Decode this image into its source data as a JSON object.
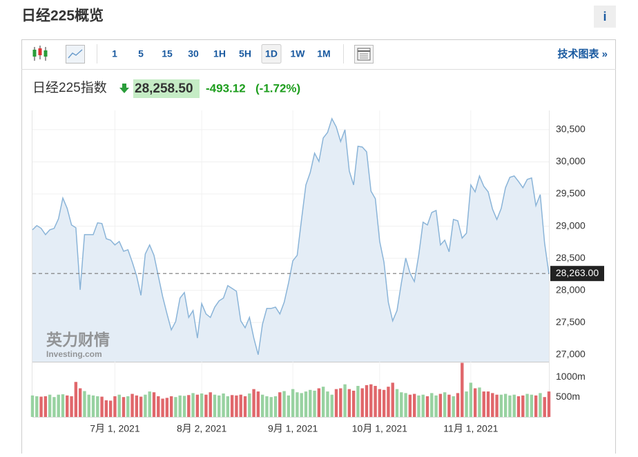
{
  "header": {
    "title": "日经225概览",
    "info": "i"
  },
  "toolbar": {
    "intervals": [
      "1",
      "5",
      "15",
      "30",
      "1H",
      "5H",
      "1D",
      "1W",
      "1M"
    ],
    "active": "1D",
    "advanced": "技术图表 »"
  },
  "quote": {
    "name": "日经225指数",
    "price": "28,258.50",
    "change": "-493.12",
    "change_percent": "(-1.72%)"
  },
  "watermark": {
    "brand": "英力财情",
    "site": "Investing.com"
  },
  "chart_data": [
    {
      "type": "line",
      "categories": [
        "2021-06-04",
        "2021-06-07",
        "2021-06-08",
        "2021-06-09",
        "2021-06-10",
        "2021-06-11",
        "2021-06-14",
        "2021-06-15",
        "2021-06-16",
        "2021-06-17",
        "2021-06-18",
        "2021-06-21",
        "2021-06-22",
        "2021-06-23",
        "2021-06-24",
        "2021-06-25",
        "2021-06-28",
        "2021-06-29",
        "2021-06-30",
        "2021-07-01",
        "2021-07-02",
        "2021-07-05",
        "2021-07-06",
        "2021-07-07",
        "2021-07-08",
        "2021-07-09",
        "2021-07-12",
        "2021-07-13",
        "2021-07-14",
        "2021-07-15",
        "2021-07-16",
        "2021-07-19",
        "2021-07-20",
        "2021-07-21",
        "2021-07-26",
        "2021-07-27",
        "2021-07-28",
        "2021-07-29",
        "2021-07-30",
        "2021-08-02",
        "2021-08-03",
        "2021-08-04",
        "2021-08-05",
        "2021-08-06",
        "2021-08-10",
        "2021-08-11",
        "2021-08-12",
        "2021-08-13",
        "2021-08-16",
        "2021-08-17",
        "2021-08-18",
        "2021-08-19",
        "2021-08-20",
        "2021-08-23",
        "2021-08-24",
        "2021-08-25",
        "2021-08-26",
        "2021-08-27",
        "2021-08-30",
        "2021-08-31",
        "2021-09-01",
        "2021-09-02",
        "2021-09-03",
        "2021-09-06",
        "2021-09-07",
        "2021-09-08",
        "2021-09-09",
        "2021-09-10",
        "2021-09-13",
        "2021-09-14",
        "2021-09-15",
        "2021-09-16",
        "2021-09-17",
        "2021-09-21",
        "2021-09-22",
        "2021-09-24",
        "2021-09-27",
        "2021-09-28",
        "2021-09-29",
        "2021-09-30",
        "2021-10-01",
        "2021-10-04",
        "2021-10-05",
        "2021-10-06",
        "2021-10-07",
        "2021-10-08",
        "2021-10-11",
        "2021-10-12",
        "2021-10-13",
        "2021-10-14",
        "2021-10-15",
        "2021-10-18",
        "2021-10-19",
        "2021-10-20",
        "2021-10-21",
        "2021-10-22",
        "2021-10-25",
        "2021-10-26",
        "2021-10-27",
        "2021-10-28",
        "2021-10-29",
        "2021-11-01",
        "2021-11-02",
        "2021-11-04",
        "2021-11-05",
        "2021-11-08",
        "2021-11-09",
        "2021-11-10",
        "2021-11-11",
        "2021-11-12",
        "2021-11-15",
        "2021-11-16",
        "2021-11-17",
        "2021-11-18",
        "2021-11-19",
        "2021-11-22",
        "2021-11-24",
        "2021-11-25",
        "2021-11-26",
        "2021-11-29"
      ],
      "series": [
        {
          "color": "#8ab4d8",
          "fill": "#e4edf6",
          "values": [
            28943,
            29008,
            28965,
            28868,
            28943,
            28965,
            29115,
            29437,
            29276,
            29018,
            28975,
            28009,
            28868,
            28868,
            28868,
            29051,
            29040,
            28804,
            28782,
            28707,
            28761,
            28610,
            28632,
            28439,
            28224,
            27923,
            28567,
            28707,
            28546,
            28224,
            27902,
            27633,
            27386,
            27515,
            27880,
            27966,
            27580,
            27687,
            27258,
            27794,
            27633,
            27580,
            27740,
            27837,
            27880,
            28074,
            28031,
            27987,
            27526,
            27419,
            27580,
            27258,
            27000,
            27472,
            27719,
            27719,
            27740,
            27633,
            27816,
            28117,
            28460,
            28546,
            29104,
            29641,
            29834,
            30135,
            30006,
            30371,
            30457,
            30672,
            30543,
            30317,
            30500,
            29856,
            29641,
            30242,
            30231,
            30156,
            29544,
            29426,
            28761,
            28439,
            27816,
            27526,
            27687,
            28117,
            28503,
            28267,
            28138,
            28546,
            29061,
            29018,
            29212,
            29244,
            28707,
            28782,
            28600,
            29104,
            29083,
            28814,
            28890,
            29641,
            29534,
            29781,
            29620,
            29534,
            29265,
            29104,
            29276,
            29598,
            29759,
            29781,
            29695,
            29598,
            29727,
            29749,
            29319,
            29491,
            28739,
            28256
          ]
        }
      ],
      "ylim": [
        26890,
        30800
      ],
      "yticks": [
        {
          "value": 27000,
          "label": "27,000"
        },
        {
          "value": 27500,
          "label": "27,500"
        },
        {
          "value": 28000,
          "label": "28,000"
        },
        {
          "value": 28500,
          "label": "28,500"
        },
        {
          "value": 29000,
          "label": "29,000"
        },
        {
          "value": 29500,
          "label": "29,500"
        },
        {
          "value": 30000,
          "label": "30,000"
        },
        {
          "value": 30500,
          "label": "30,500"
        }
      ],
      "xticks": [
        {
          "value": "2021-07-01",
          "label": "7月 1, 2021"
        },
        {
          "value": "2021-08-02",
          "label": "8月 2, 2021"
        },
        {
          "value": "2021-09-01",
          "label": "9月 1, 2021"
        },
        {
          "value": "2021-10-01",
          "label": "10月 1, 2021"
        },
        {
          "value": "2021-11-01",
          "label": "11月 1, 2021"
        }
      ],
      "grid": true,
      "last_value": {
        "value": 28263,
        "label": "28,263.00"
      }
    },
    {
      "type": "bar",
      "values": [
        540,
        520,
        510,
        520,
        560,
        500,
        560,
        570,
        540,
        520,
        880,
        720,
        650,
        560,
        540,
        520,
        510,
        420,
        410,
        520,
        560,
        500,
        520,
        580,
        540,
        510,
        560,
        640,
        620,
        520,
        460,
        480,
        520,
        500,
        540,
        530,
        550,
        600,
        560,
        590,
        560,
        620,
        560,
        540,
        590,
        520,
        550,
        540,
        560,
        520,
        590,
        700,
        640,
        560,
        520,
        500,
        520,
        620,
        650,
        540,
        700,
        620,
        600,
        640,
        680,
        660,
        720,
        760,
        640,
        560,
        700,
        720,
        820,
        700,
        660,
        780,
        720,
        800,
        820,
        780,
        700,
        680,
        760,
        860,
        700,
        620,
        600,
        560,
        580,
        540,
        560,
        520,
        600,
        540,
        580,
        620,
        560,
        520,
        600,
        1360,
        640,
        860,
        720,
        740,
        640,
        640,
        600,
        560,
        560,
        580,
        540,
        560,
        520,
        540,
        580,
        560,
        540,
        600,
        500,
        640
      ],
      "up_color": "#98d2a1",
      "down_color": "#e0676b",
      "ylim": [
        0,
        1370
      ],
      "yticks": [
        {
          "value": 500,
          "label": "500m"
        },
        {
          "value": 1000,
          "label": "1000m"
        }
      ]
    }
  ]
}
